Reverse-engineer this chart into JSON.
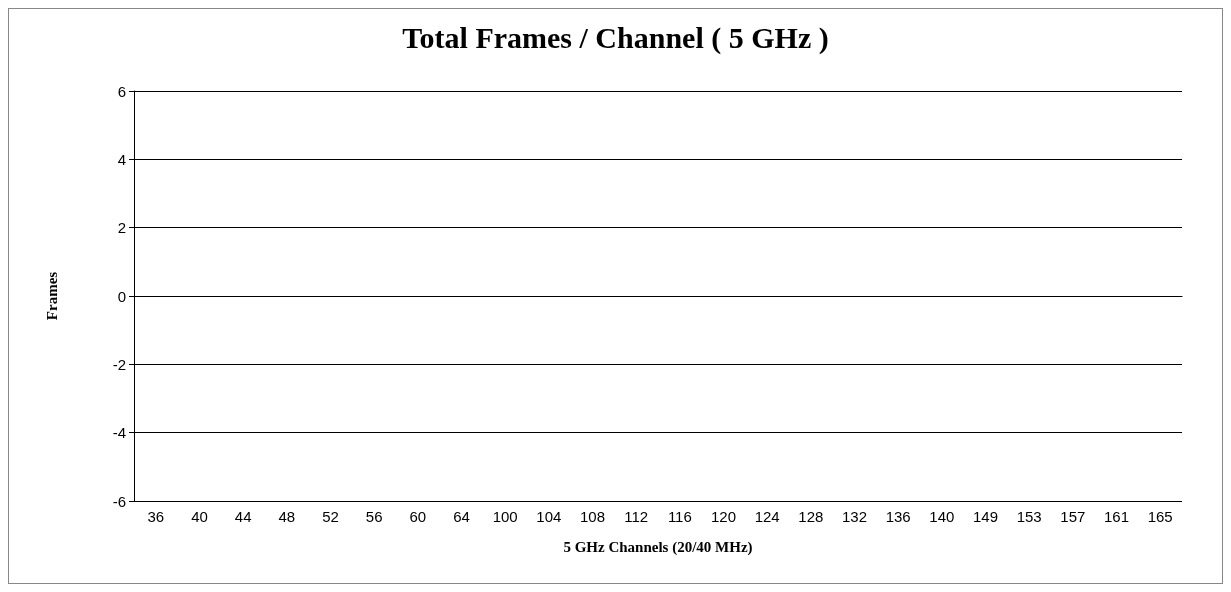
{
  "chart_data": {
    "type": "bar",
    "title": "Total Frames / Channel ( 5 GHz )",
    "xlabel": "5 GHz Channels (20/40 MHz)",
    "ylabel": "Frames",
    "categories": [
      "36",
      "40",
      "44",
      "48",
      "52",
      "56",
      "60",
      "64",
      "100",
      "104",
      "108",
      "112",
      "116",
      "120",
      "124",
      "128",
      "132",
      "136",
      "140",
      "149",
      "153",
      "157",
      "161",
      "165"
    ],
    "values": [
      0,
      0,
      0,
      0,
      0,
      0,
      0,
      0,
      0,
      0,
      0,
      0,
      0,
      0,
      0,
      0,
      0,
      0,
      0,
      0,
      0,
      0,
      0,
      0
    ],
    "ylim": [
      -6,
      6
    ],
    "yticks": [
      -6,
      -4,
      -2,
      0,
      2,
      4,
      6
    ],
    "grid": "y"
  }
}
